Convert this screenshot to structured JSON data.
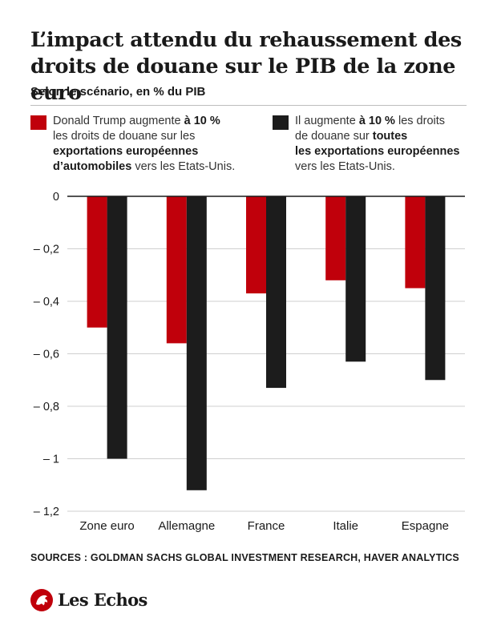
{
  "header": {
    "title": "L’impact attendu du rehaussement des droits de douane sur le PIB de la zone euro",
    "subtitle": "Selon le scénario, en % du PIB"
  },
  "legend": {
    "items": [
      {
        "color": "#c0000b",
        "lines": [
          [
            {
              "t": "Donald Trump augmente ",
              "b": false
            },
            {
              "t": "à 10 %",
              "b": true
            }
          ],
          [
            {
              "t": "les droits de douane sur les",
              "b": false
            }
          ],
          [
            {
              "t": "exportations européennes",
              "b": true
            }
          ],
          [
            {
              "t": "d’automobiles",
              "b": true
            },
            {
              "t": " vers les Etats-Unis.",
              "b": false
            }
          ]
        ]
      },
      {
        "color": "#1c1c1c",
        "lines": [
          [
            {
              "t": "Il augmente ",
              "b": false
            },
            {
              "t": "à 10 %",
              "b": true
            },
            {
              "t": " les droits",
              "b": false
            }
          ],
          [
            {
              "t": "de douane sur ",
              "b": false
            },
            {
              "t": "toutes",
              "b": true
            }
          ],
          [
            {
              "t": "les exportations européennes",
              "b": true
            }
          ],
          [
            {
              "t": "vers les Etats-Unis.",
              "b": false
            }
          ]
        ]
      }
    ]
  },
  "chart_data": {
    "type": "bar",
    "categories": [
      "Zone euro",
      "Allemagne",
      "France",
      "Italie",
      "Espagne"
    ],
    "series": [
      {
        "color": "#c0000b",
        "values": [
          -0.5,
          -0.56,
          -0.37,
          -0.32,
          -0.35
        ]
      },
      {
        "color": "#1c1c1c",
        "values": [
          -1.0,
          -1.12,
          -0.73,
          -0.63,
          -0.7
        ]
      }
    ],
    "yticks": [
      0,
      -0.2,
      -0.4,
      -0.6,
      -0.8,
      -1,
      -1.2
    ],
    "ytick_labels": [
      "0",
      "– 0,2",
      "– 0,4",
      "– 0,6",
      "– 0,8",
      "– 1",
      "– 1,2"
    ],
    "ylim": [
      -1.2,
      0
    ],
    "grid": true
  },
  "footer": {
    "sources": "SOURCES : GOLDMAN SACHS GLOBAL INVESTMENT RESEARCH, HAVER ANALYTICS",
    "logo_text": "Les Echos",
    "logo_icon": "les-echos-lion-icon",
    "logo_color": "#c0000b"
  }
}
